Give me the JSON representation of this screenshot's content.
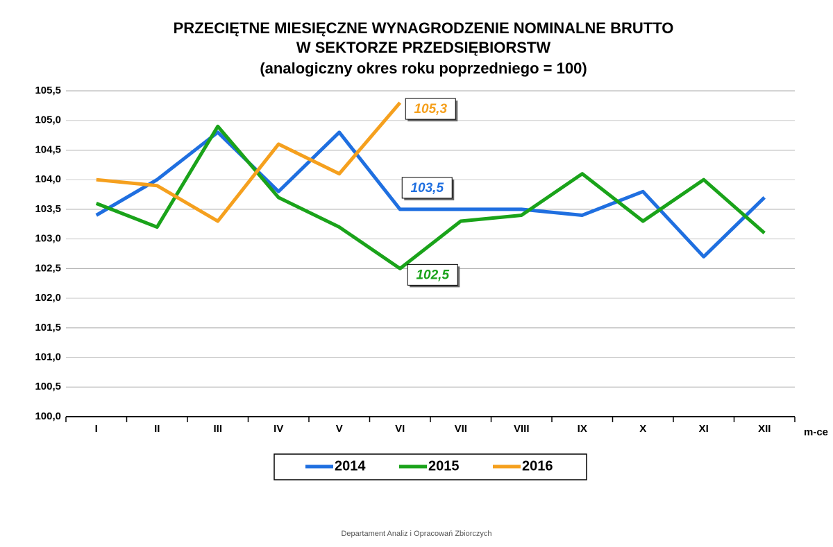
{
  "chart_data": {
    "type": "line",
    "title": [
      "PRZECIĘTNE MIESIĘCZNE WYNAGRODZENIE NOMINALNE BRUTTO",
      "W SEKTORZE PRZEDSIĘBIORSTW"
    ],
    "subtitle": "(analogiczny okres roku poprzedniego = 100)",
    "x_label": "m-ce",
    "footer": "Departament Analiz i Opracowań Zbiorczych",
    "categories": [
      "I",
      "II",
      "III",
      "IV",
      "V",
      "VI",
      "VII",
      "VIII",
      "IX",
      "X",
      "XI",
      "XII"
    ],
    "series": [
      {
        "name": "2014",
        "color": "#1f6fe0",
        "values": [
          103.4,
          104.0,
          104.8,
          103.8,
          104.8,
          103.5,
          103.5,
          103.5,
          103.4,
          103.8,
          102.7,
          103.7
        ],
        "value_labels": [
          null,
          null,
          null,
          null,
          null,
          "103,5",
          null,
          null,
          null,
          null,
          null,
          null
        ]
      },
      {
        "name": "2015",
        "color": "#1aa31a",
        "values": [
          103.6,
          103.2,
          104.9,
          103.7,
          103.2,
          102.5,
          103.3,
          103.4,
          104.1,
          103.3,
          104.0,
          103.1
        ],
        "value_labels": [
          null,
          null,
          null,
          null,
          null,
          "102,5",
          null,
          null,
          null,
          null,
          null,
          null
        ]
      },
      {
        "name": "2016",
        "color": "#f5a01e",
        "values": [
          104.0,
          103.9,
          103.3,
          104.6,
          104.1,
          105.3,
          null,
          null,
          null,
          null,
          null,
          null
        ],
        "value_labels": [
          null,
          null,
          null,
          null,
          null,
          "105,3",
          null,
          null,
          null,
          null,
          null,
          null
        ]
      }
    ],
    "ylim": [
      100,
      105.5
    ],
    "yticks": [
      {
        "value": 100,
        "label": "100,0"
      },
      {
        "value": 100.5,
        "label": "100,5"
      },
      {
        "value": 101,
        "label": "101,0"
      },
      {
        "value": 101.5,
        "label": "101,5"
      },
      {
        "value": 102,
        "label": "102,0"
      },
      {
        "value": 102.5,
        "label": "102,5"
      },
      {
        "value": 103,
        "label": "103,0"
      },
      {
        "value": 103.5,
        "label": "103,5"
      },
      {
        "value": 104,
        "label": "104,0"
      },
      {
        "value": 104.5,
        "label": "104,5"
      },
      {
        "value": 105,
        "label": "105,0"
      },
      {
        "value": 105.5,
        "label": "105,5"
      }
    ],
    "grid": true,
    "legend": "bottom"
  }
}
